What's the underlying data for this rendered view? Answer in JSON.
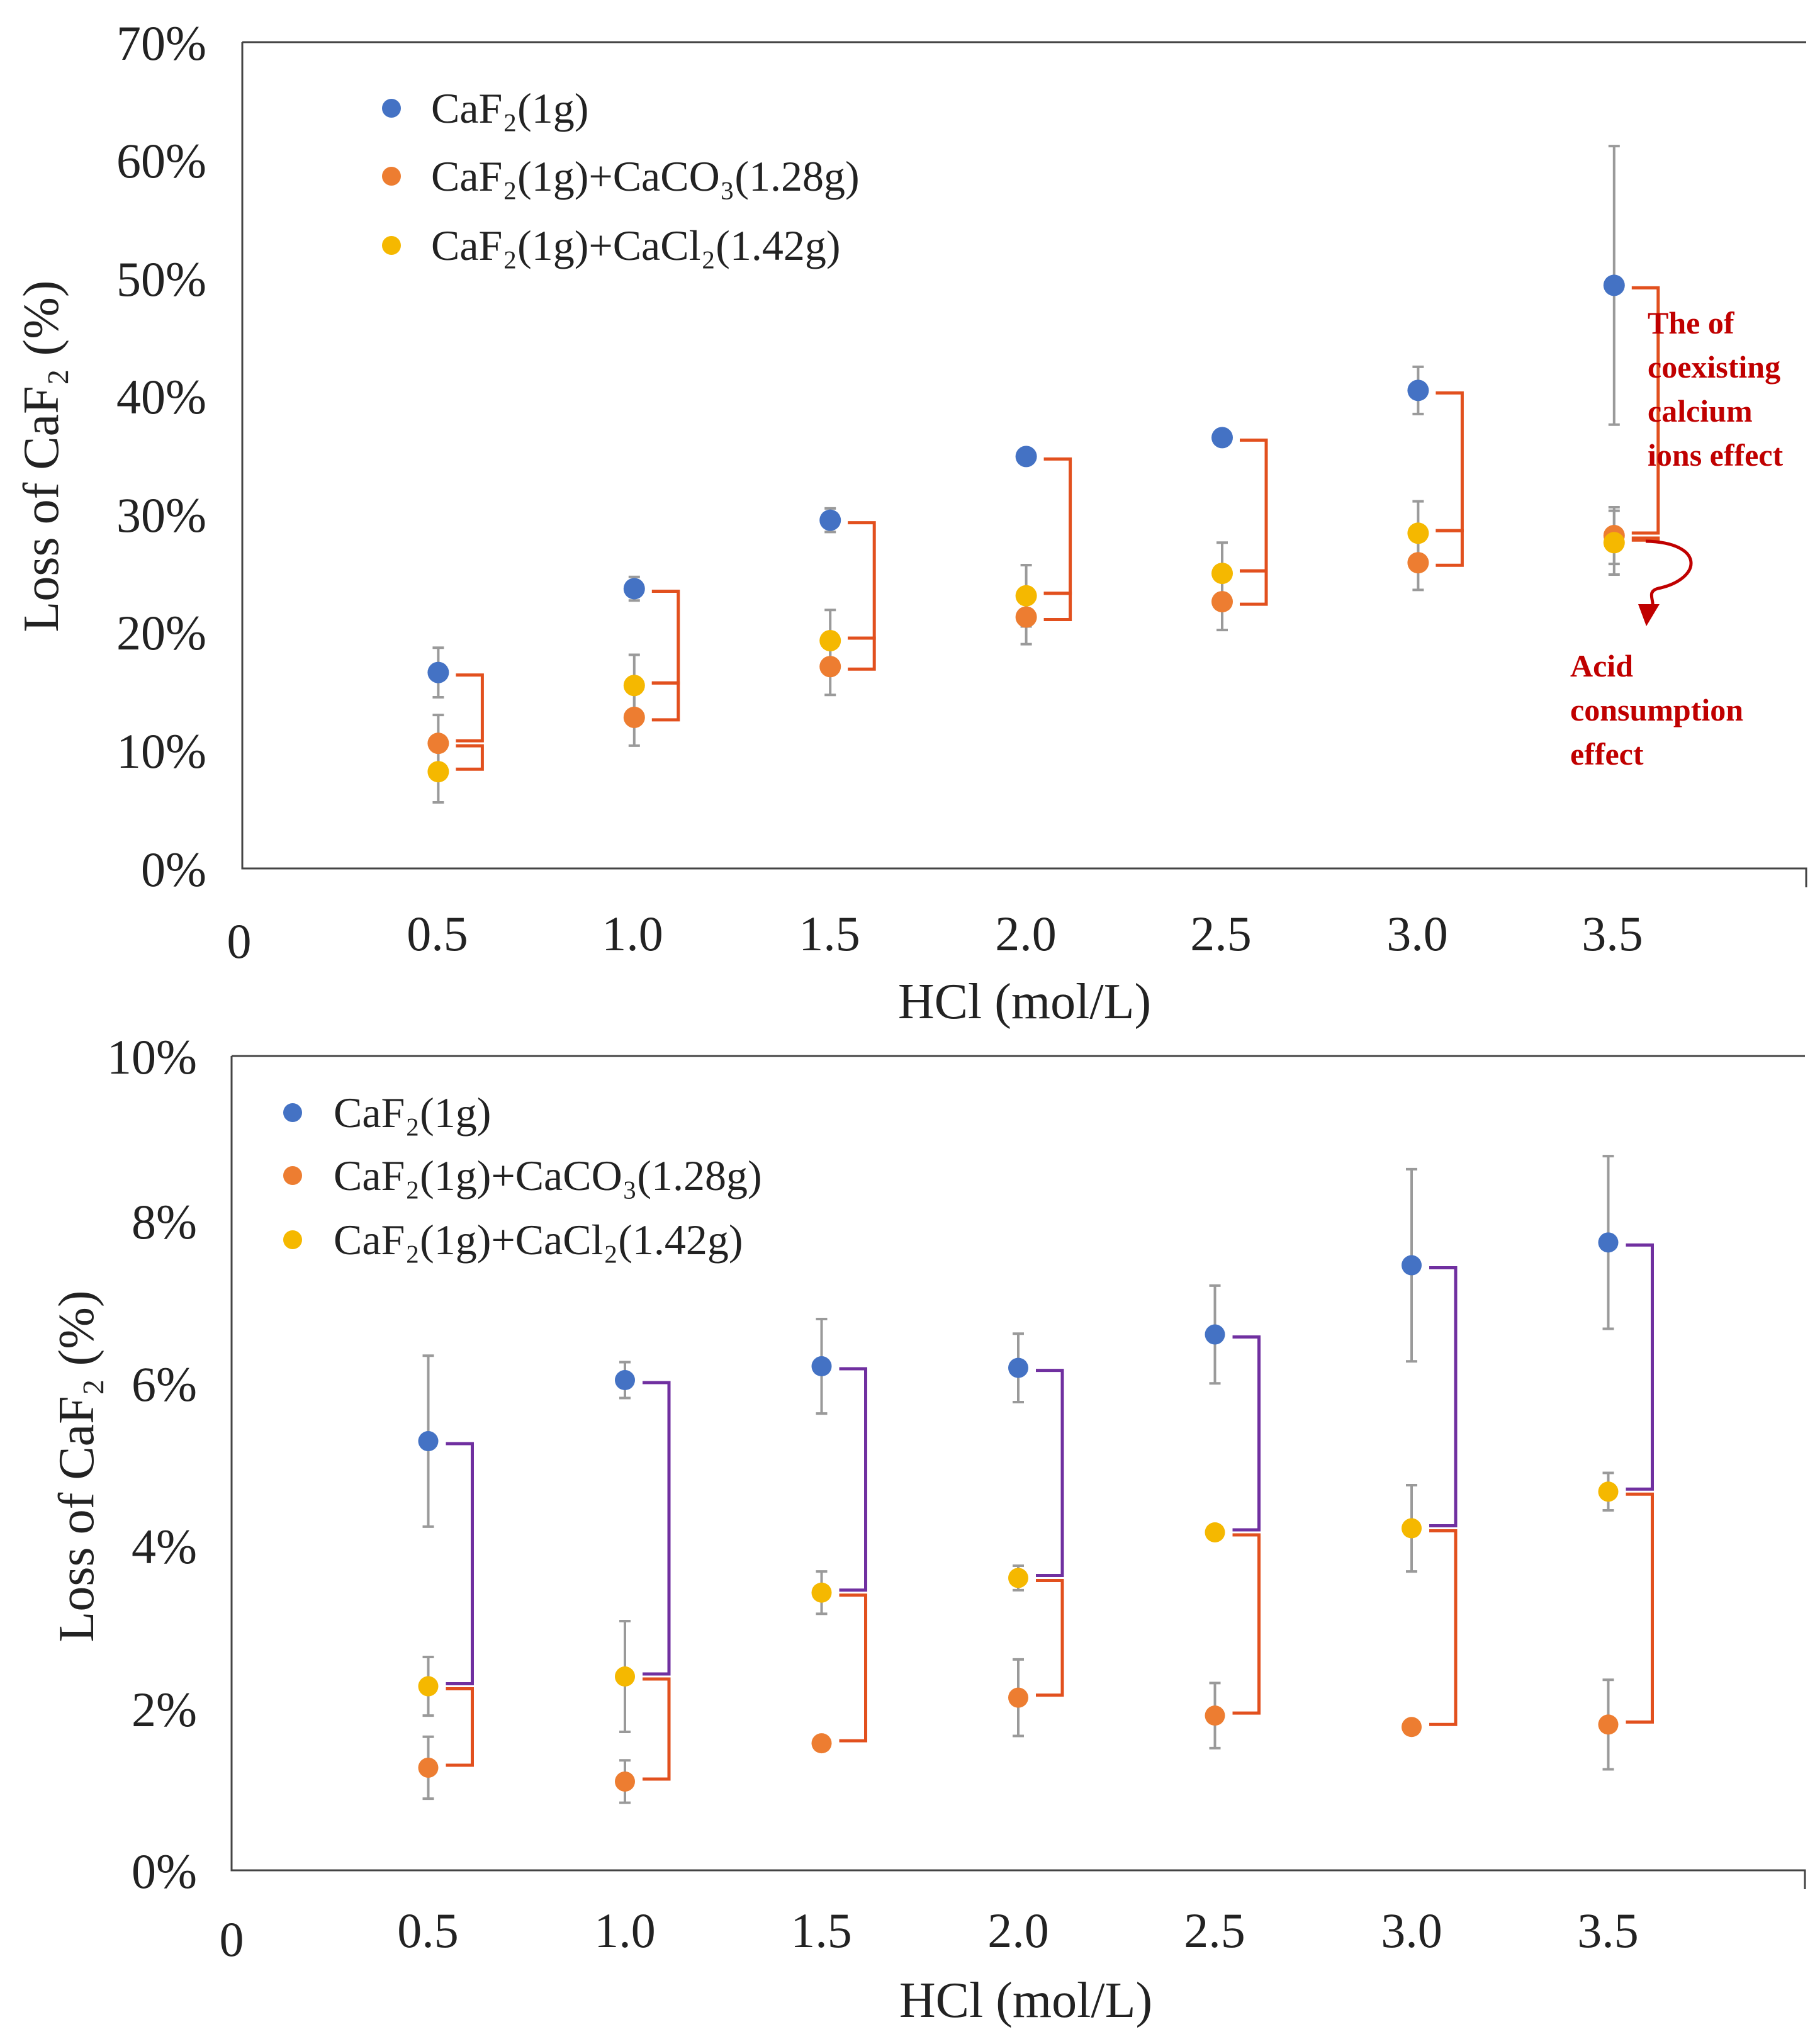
{
  "chart_data": [
    {
      "type": "scatter",
      "title": "",
      "xlabel": "HCl (mol/L)",
      "ylabel": "Loss of CaF₂ (%)",
      "x": [
        0.5,
        1.0,
        1.5,
        2.0,
        2.5,
        3.0,
        3.5
      ],
      "x_tick_labels": [
        "0",
        "0.5",
        "1.0",
        "1.5",
        "2.0",
        "2.5",
        "3.0",
        "3.5"
      ],
      "xlim": [
        0,
        4
      ],
      "ylim": [
        0,
        70
      ],
      "y_ticks": [
        0,
        10,
        20,
        30,
        40,
        50,
        60,
        70
      ],
      "y_tick_labels": [
        "0%",
        "10%",
        "20%",
        "30%",
        "40%",
        "50%",
        "60%",
        "70%"
      ],
      "grid": false,
      "legend_position": "top-left",
      "series": [
        {
          "name": "CaF₂(1g)",
          "color": "#4472c4",
          "values": [
            16.6,
            23.7,
            29.5,
            34.9,
            36.5,
            40.5,
            49.4
          ],
          "errors": [
            2.1,
            1.0,
            1.0,
            0.4,
            0.4,
            2.0,
            11.8
          ]
        },
        {
          "name": "CaF₂(1g)+CaCO₃(1.28g)",
          "color": "#ed7d31",
          "values": [
            10.6,
            12.8,
            17.1,
            21.3,
            22.6,
            25.9,
            28.2
          ],
          "errors": [
            2.4,
            2.4,
            2.4,
            2.3,
            2.4,
            2.3,
            2.4
          ]
        },
        {
          "name": "CaF₂(1g)+CaCl₂(1.42g)",
          "color": "#f5b800",
          "values": [
            8.2,
            15.5,
            19.3,
            23.1,
            25.0,
            28.4,
            27.6
          ],
          "errors": [
            2.6,
            2.6,
            2.6,
            2.6,
            2.6,
            2.7,
            2.7
          ]
        }
      ],
      "annotations": {
        "calcium_ions": [
          "The of",
          "coexisting",
          "calcium",
          "ions effect"
        ],
        "acid_consumption": [
          "Acid",
          "consumption",
          "effect"
        ]
      }
    },
    {
      "type": "scatter",
      "title": "",
      "xlabel": "HCl (mol/L)",
      "ylabel": "Loss of CaF₂ (%)",
      "x": [
        0.5,
        1.0,
        1.5,
        2.0,
        2.5,
        3.0,
        3.5
      ],
      "x_tick_labels": [
        "0",
        "0.5",
        "1.0",
        "1.5",
        "2.0",
        "2.5",
        "3.0",
        "3.5"
      ],
      "xlim": [
        0,
        4
      ],
      "ylim": [
        0,
        10
      ],
      "y_ticks": [
        0,
        2,
        4,
        6,
        8,
        10
      ],
      "y_tick_labels": [
        "0%",
        "2%",
        "4%",
        "6%",
        "8%",
        "10%"
      ],
      "grid": false,
      "legend_position": "top-left",
      "series": [
        {
          "name": "CaF₂(1g)",
          "color": "#4472c4",
          "values": [
            5.27,
            6.02,
            6.19,
            6.17,
            6.58,
            7.43,
            7.71
          ],
          "errors": [
            1.05,
            0.22,
            0.58,
            0.42,
            0.6,
            1.18,
            1.06
          ]
        },
        {
          "name": "CaF₂(1g)+CaCO₃(1.28g)",
          "color": "#ed7d31",
          "values": [
            1.26,
            1.09,
            1.56,
            2.12,
            1.9,
            1.76,
            1.79
          ],
          "errors": [
            0.38,
            0.26,
            0.0,
            0.47,
            0.4,
            0.0,
            0.55
          ]
        },
        {
          "name": "CaF₂(1g)+CaCl₂(1.42g)",
          "color": "#f5b800",
          "values": [
            2.26,
            2.38,
            3.41,
            3.59,
            4.15,
            4.2,
            4.65
          ],
          "errors": [
            0.36,
            0.68,
            0.26,
            0.15,
            0.0,
            0.53,
            0.23
          ]
        }
      ]
    }
  ]
}
